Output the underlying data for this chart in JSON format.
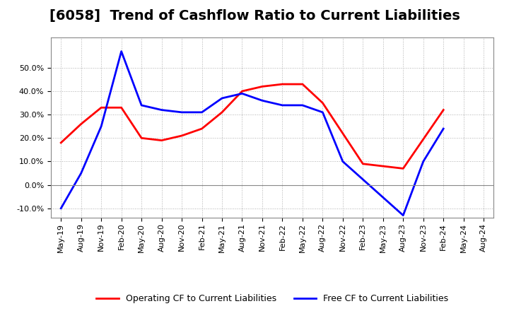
{
  "title": "[6058]  Trend of Cashflow Ratio to Current Liabilities",
  "x_labels": [
    "May-19",
    "Aug-19",
    "Nov-19",
    "Feb-20",
    "May-20",
    "Aug-20",
    "Nov-20",
    "Feb-21",
    "May-21",
    "Aug-21",
    "Nov-21",
    "Feb-22",
    "May-22",
    "Aug-22",
    "Nov-22",
    "Feb-23",
    "May-23",
    "Aug-23",
    "Nov-23",
    "Feb-24",
    "May-24",
    "Aug-24"
  ],
  "operating_cf": [
    0.18,
    0.26,
    0.33,
    0.33,
    0.2,
    0.19,
    0.21,
    0.24,
    0.31,
    0.4,
    0.42,
    0.43,
    0.43,
    0.35,
    0.22,
    0.09,
    0.08,
    0.07,
    null,
    0.32,
    null,
    null
  ],
  "free_cf": [
    -0.1,
    0.05,
    0.25,
    0.57,
    0.34,
    0.32,
    0.31,
    0.31,
    0.37,
    0.39,
    0.36,
    0.34,
    0.34,
    0.31,
    0.1,
    null,
    null,
    -0.13,
    0.1,
    0.24,
    null,
    null
  ],
  "ylim": [
    -0.14,
    0.63
  ],
  "yticks": [
    -0.1,
    0.0,
    0.1,
    0.2,
    0.3,
    0.4,
    0.5
  ],
  "operating_color": "#ff0000",
  "free_color": "#0000ff",
  "bg_color": "#ffffff",
  "plot_bg_color": "#ffffff",
  "grid_color": "#b0b0b0",
  "legend_operating": "Operating CF to Current Liabilities",
  "legend_free": "Free CF to Current Liabilities",
  "title_fontsize": 14,
  "tick_fontsize": 8,
  "legend_fontsize": 9
}
